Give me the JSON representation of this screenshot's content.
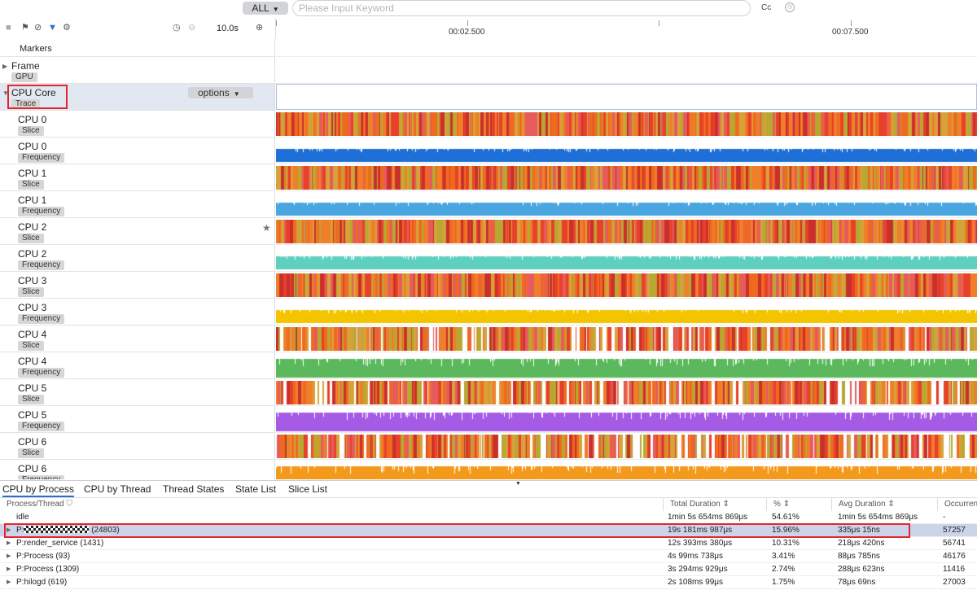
{
  "search": {
    "filter_label": "ALL",
    "placeholder": "Please Input Keyword",
    "case_label": "Cc"
  },
  "toolbar": {
    "zoom_value": "10.0s"
  },
  "timeline": {
    "ticks": [
      "00:02.500",
      "00:07.500"
    ]
  },
  "rows": {
    "markers": "Markers",
    "frame": {
      "name": "Frame",
      "tag": "GPU"
    },
    "cpu_core": {
      "name": "CPU Core",
      "tag": "Trace",
      "options_label": "options"
    },
    "cpus": [
      {
        "name": "CPU 0",
        "tag": "Slice"
      },
      {
        "name": "CPU 0",
        "tag": "Frequency"
      },
      {
        "name": "CPU 1",
        "tag": "Slice"
      },
      {
        "name": "CPU 1",
        "tag": "Frequency"
      },
      {
        "name": "CPU 2",
        "tag": "Slice"
      },
      {
        "name": "CPU 2",
        "tag": "Frequency"
      },
      {
        "name": "CPU 3",
        "tag": "Slice"
      },
      {
        "name": "CPU 3",
        "tag": "Frequency"
      },
      {
        "name": "CPU 4",
        "tag": "Slice"
      },
      {
        "name": "CPU 4",
        "tag": "Frequency"
      },
      {
        "name": "CPU 5",
        "tag": "Slice"
      },
      {
        "name": "CPU 5",
        "tag": "Frequency"
      },
      {
        "name": "CPU 6",
        "tag": "Slice"
      },
      {
        "name": "CPU 6",
        "tag": "Frequency"
      }
    ]
  },
  "freq_colors": {
    "cpu0": "#1f6fd8",
    "cpu1": "#4aa6e0",
    "cpu2": "#5fcfbf",
    "cpu3": "#f3c400",
    "cpu4": "#5cb85c",
    "cpu5": "#a55be6",
    "cpu6": "#f39a1c"
  },
  "slice_colors": [
    "#e8402a",
    "#f07f2a",
    "#d6a23a",
    "#c9302c",
    "#e65c5c",
    "#b8a832",
    "#ef6a1e"
  ],
  "tabs": [
    "CPU by Process",
    "CPU by Thread",
    "Thread States",
    "State List",
    "Slice List"
  ],
  "table": {
    "columns": [
      "Process/Thread",
      "Total Duration",
      "%",
      "Avg Duration",
      "Occurrences"
    ],
    "rows": [
      {
        "name": "idle",
        "total": "1min 5s 654ms 869μs",
        "pct": "54.61%",
        "avg": "1min 5s 654ms 869μs",
        "occ": "-"
      },
      {
        "name_prefix": "P:",
        "name_suffix": " (24803)",
        "total": "19s 181ms 987μs",
        "pct": "15.96%",
        "avg": "335μs 15ns",
        "occ": "57257"
      },
      {
        "name": "P:render_service (1431)",
        "total": "12s 393ms 380μs",
        "pct": "10.31%",
        "avg": "218μs 420ns",
        "occ": "56741"
      },
      {
        "name": "P:Process (93)",
        "total": "4s 99ms 738μs",
        "pct": "3.41%",
        "avg": "88μs 785ns",
        "occ": "46176"
      },
      {
        "name": "P:Process (1309)",
        "total": "3s 294ms 929μs",
        "pct": "2.74%",
        "avg": "288μs 623ns",
        "occ": "11416"
      },
      {
        "name": "P:hilogd (619)",
        "total": "2s 108ms 99μs",
        "pct": "1.75%",
        "avg": "78μs 69ns",
        "occ": "27003"
      }
    ]
  }
}
